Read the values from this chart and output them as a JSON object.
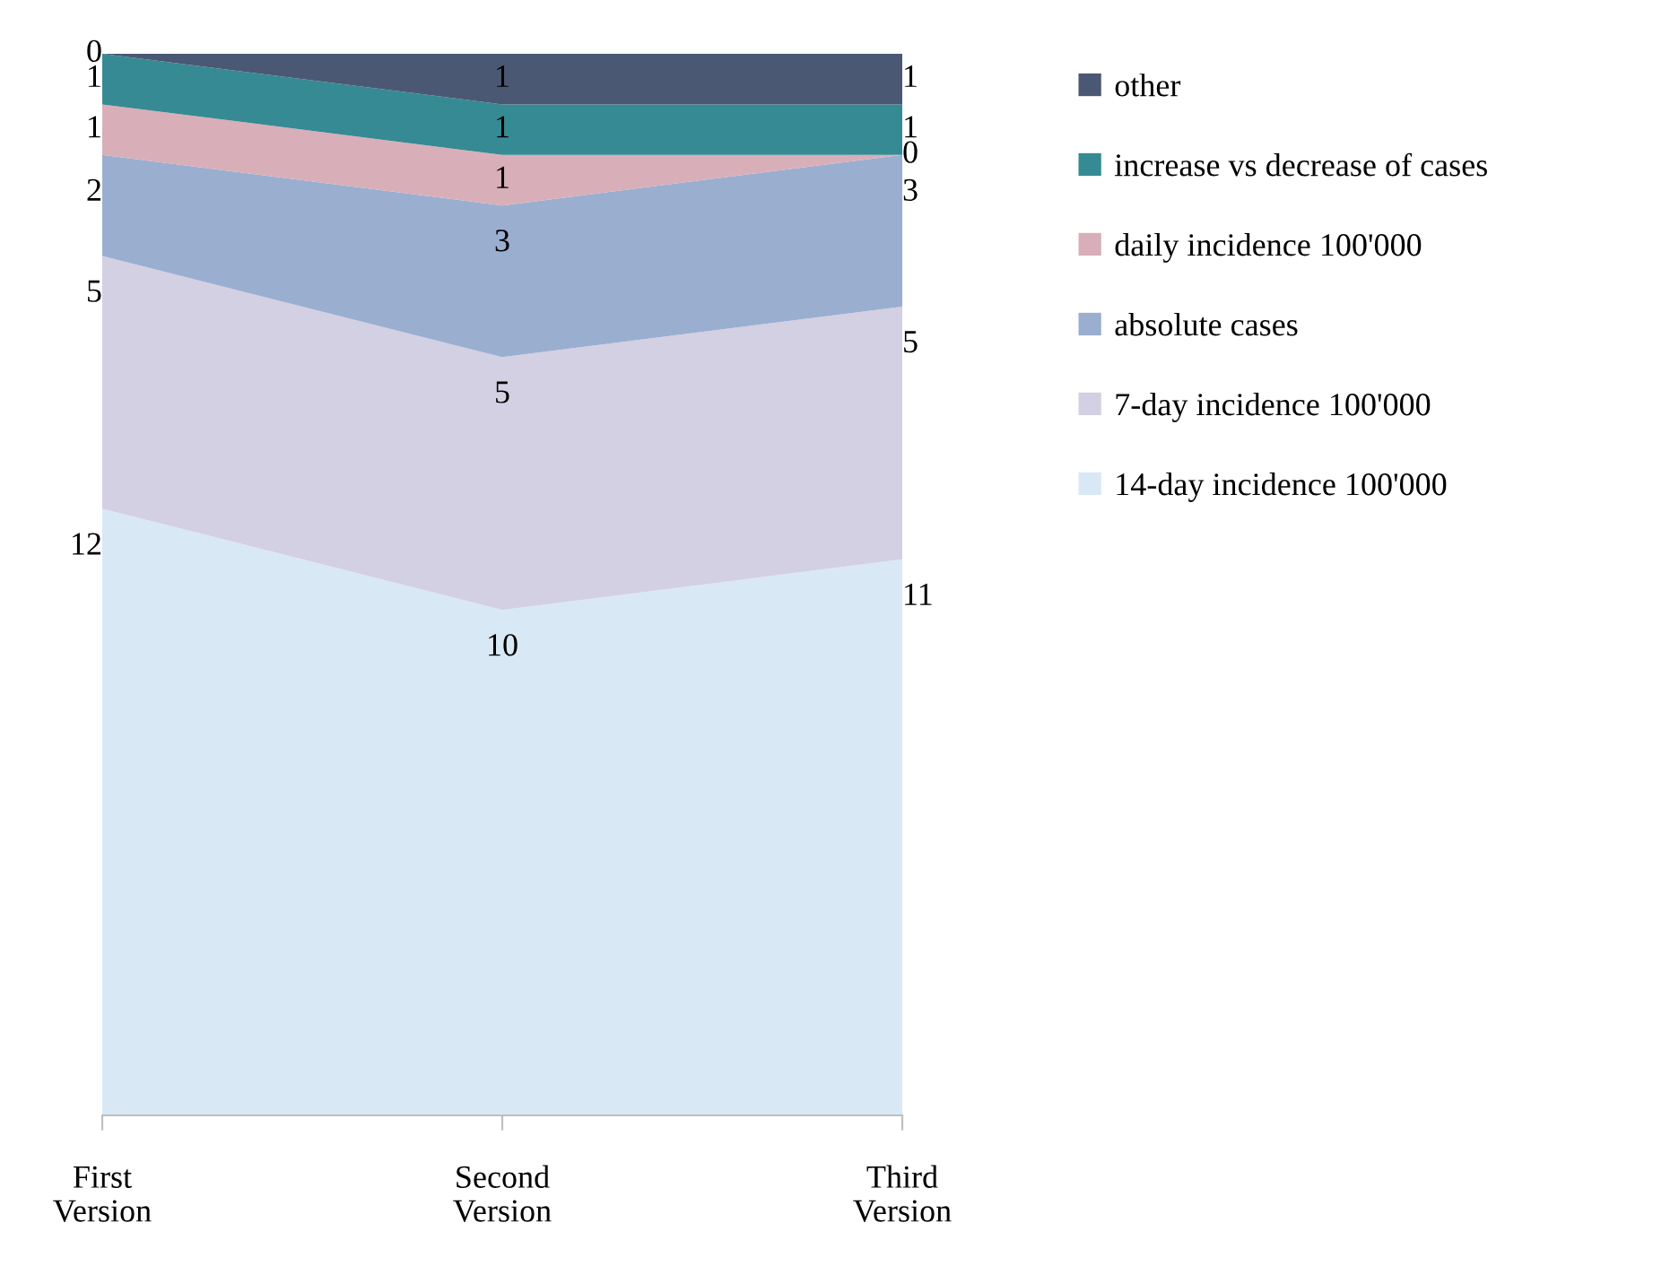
{
  "chart_data": {
    "type": "area",
    "stacked": true,
    "data_labels": true,
    "legend": "right",
    "grid": false,
    "categories": [
      "First\nVersion",
      "Second\nVersion",
      "Third\nVersion"
    ],
    "series": [
      {
        "name": "14-day incidence 100'000",
        "color": "#d9e8f5",
        "values": [
          12,
          10,
          11
        ]
      },
      {
        "name": "7-day incidence 100'000",
        "color": "#d3d0e3",
        "values": [
          5,
          5,
          5
        ]
      },
      {
        "name": "absolute cases",
        "color": "#9aaed0",
        "values": [
          2,
          3,
          3
        ]
      },
      {
        "name": "daily incidence 100'000",
        "color": "#d8aeb8",
        "values": [
          1,
          1,
          0
        ]
      },
      {
        "name": "increase vs decrease of cases",
        "color": "#368a93",
        "values": [
          1,
          1,
          1
        ]
      },
      {
        "name": "other",
        "color": "#4a5873",
        "values": [
          0,
          1,
          1
        ]
      }
    ]
  }
}
